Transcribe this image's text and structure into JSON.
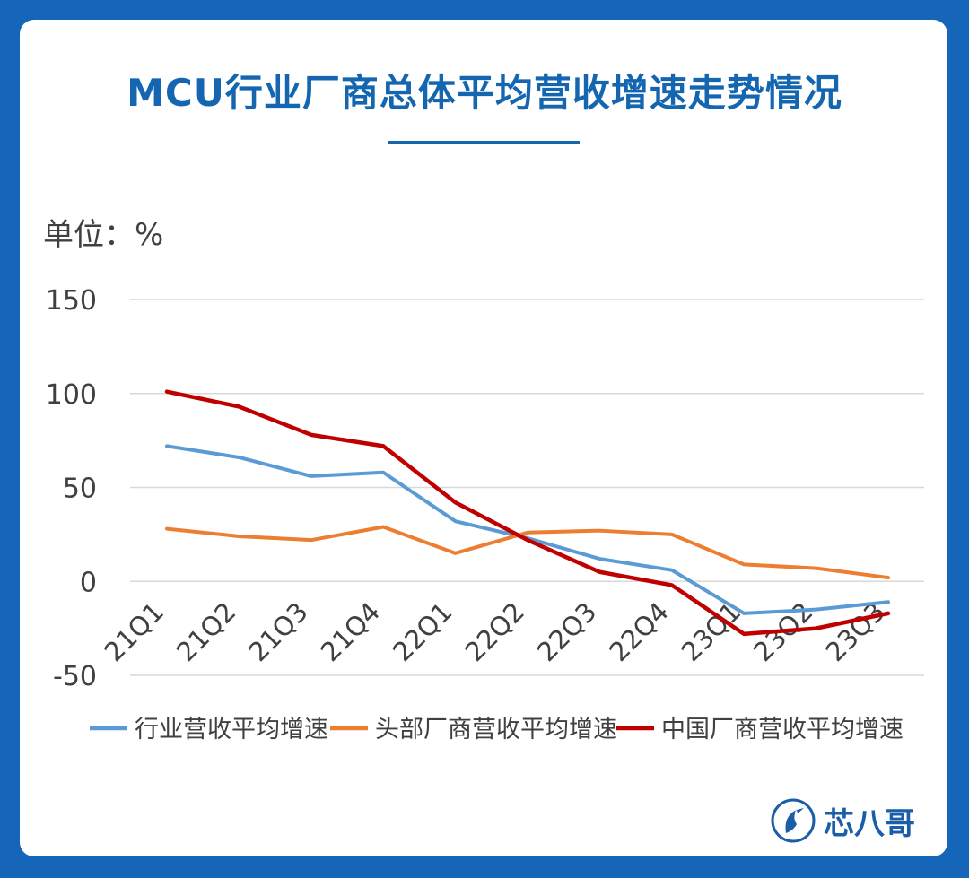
{
  "title": "MCU行业厂商总体平均营收增速走势情况",
  "unit_label": "单位：%",
  "brand": {
    "name": "芯八哥",
    "icon": "bird-logo-icon"
  },
  "watermark_text": "芯八哥",
  "colors": {
    "background": "#1565b8",
    "title": "#1466b0",
    "grid": "#d9d9d9",
    "axis_text": "#404040"
  },
  "chart_data": {
    "type": "line",
    "categories": [
      "21Q1",
      "21Q2",
      "21Q3",
      "21Q4",
      "22Q1",
      "22Q2",
      "22Q3",
      "22Q4",
      "23Q1",
      "23Q2",
      "23Q3"
    ],
    "ylim": [
      -50,
      150
    ],
    "yticks": [
      "150",
      "100",
      "50",
      "0",
      "-50"
    ],
    "grid": true,
    "legend": "bottom",
    "series": [
      {
        "name": "行业营收平均增速",
        "color": "#5b9bd5",
        "values": [
          72,
          66,
          56,
          58,
          32,
          23,
          12,
          6,
          -17,
          -15,
          -11
        ]
      },
      {
        "name": "头部厂商营收平均增速",
        "color": "#ed7d31",
        "values": [
          28,
          24,
          22,
          29,
          15,
          26,
          27,
          25,
          9,
          7,
          2
        ]
      },
      {
        "name": "中国厂商营收平均增速",
        "color": "#c00000",
        "values": [
          101,
          93,
          78,
          72,
          42,
          22,
          5,
          -2,
          -28,
          -25,
          -17
        ]
      }
    ]
  }
}
